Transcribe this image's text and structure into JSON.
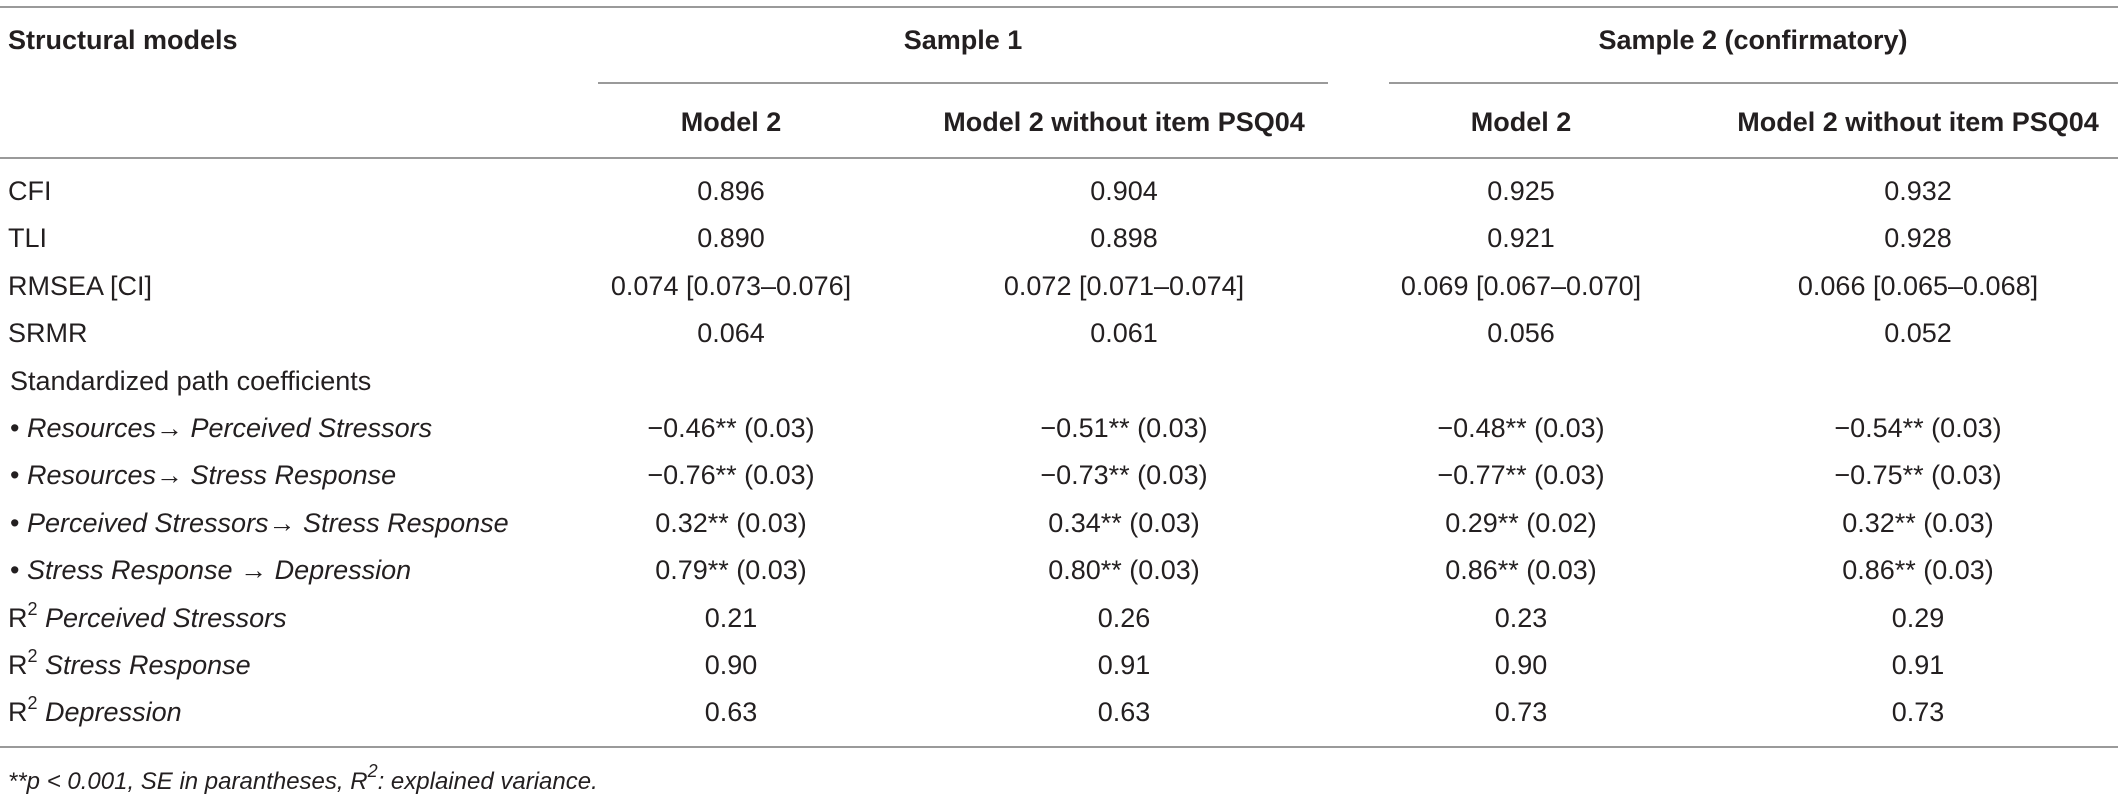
{
  "header": {
    "row_label": "Structural models",
    "sample1": "Sample 1",
    "sample2": "Sample 2 (confirmatory)",
    "col1": "Model 2",
    "col2": "Model 2 without item PSQ04",
    "col3": "Model 2",
    "col4": "Model 2 without item PSQ04"
  },
  "rows": [
    {
      "label": "CFI",
      "values": [
        "0.896",
        "0.904",
        "0.925",
        "0.932"
      ]
    },
    {
      "label": "TLI",
      "values": [
        "0.890",
        "0.898",
        "0.921",
        "0.928"
      ]
    },
    {
      "label": "RMSEA [CI]",
      "values": [
        "0.074 [0.073–0.076]",
        "0.072 [0.071–0.074]",
        "0.069 [0.067–0.070]",
        "0.066 [0.065–0.068]"
      ]
    },
    {
      "label": "SRMR",
      "values": [
        "0.064",
        "0.061",
        "0.056",
        "0.052"
      ]
    },
    {
      "label": "Standardized path coefficients",
      "values": [
        "",
        "",
        "",
        ""
      ]
    },
    {
      "label": "Resources→ Perceived Stressors",
      "bullet": "•",
      "values": [
        "−0.46** (0.03)",
        "−0.51** (0.03)",
        "−0.48** (0.03)",
        "−0.54** (0.03)"
      ]
    },
    {
      "label": "Resources→ Stress Response",
      "bullet": "•",
      "values": [
        "−0.76** (0.03)",
        "−0.73** (0.03)",
        "−0.77** (0.03)",
        "−0.75** (0.03)"
      ]
    },
    {
      "label": "Perceived Stressors→ Stress Response",
      "bullet": "•",
      "values": [
        "0.32** (0.03)",
        "0.34** (0.03)",
        "0.29** (0.02)",
        "0.32** (0.03)"
      ]
    },
    {
      "label": "Stress Response → Depression",
      "bullet": "•",
      "values": [
        "0.79** (0.03)",
        "0.80** (0.03)",
        "0.86** (0.03)",
        "0.86** (0.03)"
      ]
    },
    {
      "label": "Perceived Stressors",
      "r2": "R",
      "sup": "2",
      "values": [
        "0.21",
        "0.26",
        "0.23",
        "0.29"
      ]
    },
    {
      "label": "Stress Response",
      "r2": "R",
      "sup": "2",
      "values": [
        "0.90",
        "0.91",
        "0.90",
        "0.91"
      ]
    },
    {
      "label": "Depression",
      "r2": "R",
      "sup": "2",
      "values": [
        "0.63",
        "0.63",
        "0.73",
        "0.73"
      ]
    }
  ],
  "footnote": {
    "part1": "**p < 0.001, SE in parantheses, R",
    "sup": "2",
    "part2": ": explained variance."
  }
}
